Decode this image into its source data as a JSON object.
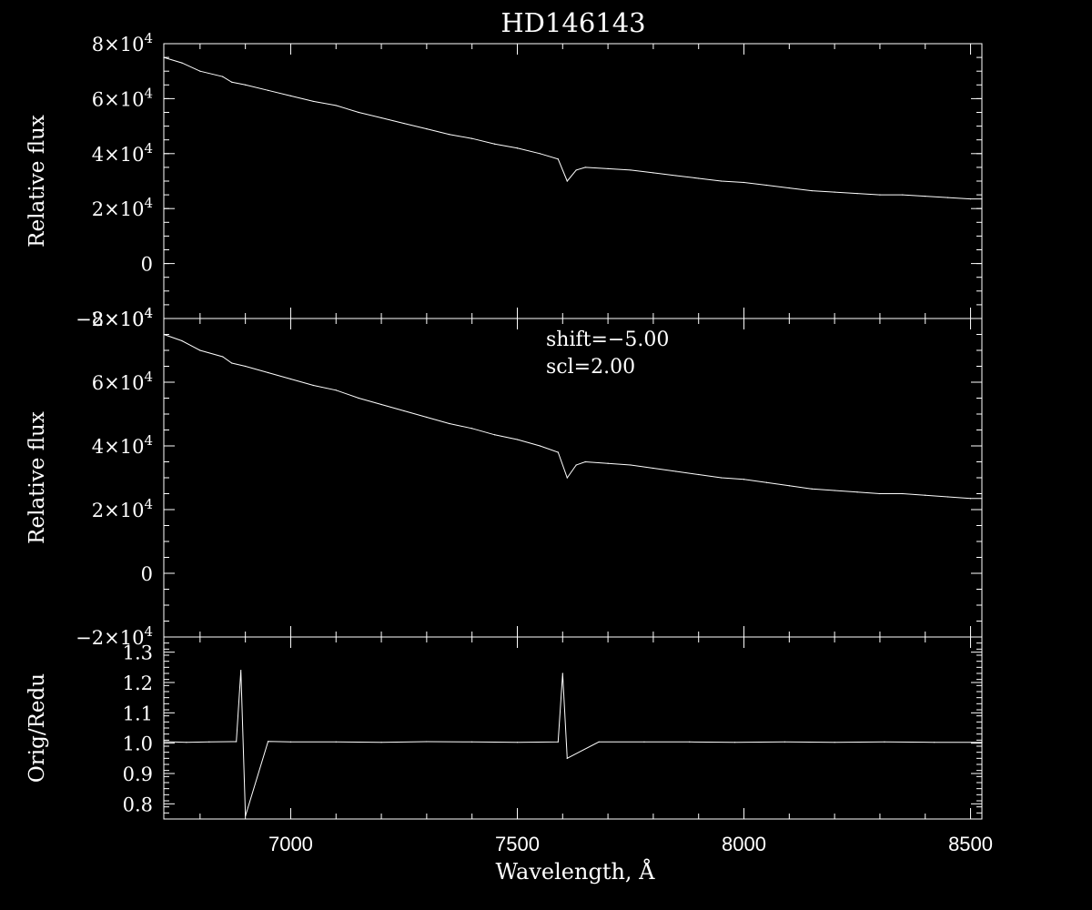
{
  "chart_data": {
    "type": "line",
    "title": "HD146143",
    "x_axis": {
      "label": "Wavelength, Å",
      "lim": [
        6720,
        8525
      ],
      "ticks": [
        7000,
        7500,
        8000,
        8500
      ]
    },
    "panels": [
      {
        "ylabel": "Relative flux",
        "ylim": [
          -20000,
          80000
        ],
        "yticks": [
          {
            "value": 80000,
            "mant": "8",
            "exp": "4"
          },
          {
            "value": 60000,
            "mant": "6",
            "exp": "4"
          },
          {
            "value": 40000,
            "mant": "4",
            "exp": "4"
          },
          {
            "value": 20000,
            "mant": "2",
            "exp": "4"
          },
          {
            "value": 0,
            "mant": "0",
            "exp": ""
          },
          {
            "value": -20000,
            "mant": "−2",
            "exp": "4"
          }
        ],
        "annotations": [],
        "series": [
          {
            "x": [
              6720,
              6760,
              6800,
              6850,
              6870,
              6900,
              6950,
              7000,
              7050,
              7100,
              7150,
              7200,
              7250,
              7300,
              7350,
              7400,
              7450,
              7500,
              7550,
              7590,
              7610,
              7630,
              7650,
              7700,
              7750,
              7800,
              7850,
              7900,
              7950,
              8000,
              8050,
              8100,
              8150,
              8200,
              8250,
              8300,
              8350,
              8400,
              8450,
              8500,
              8525
            ],
            "y": [
              75000,
              73000,
              70000,
              68000,
              66000,
              65000,
              63000,
              61000,
              59000,
              57500,
              55000,
              53000,
              51000,
              49000,
              47000,
              45500,
              43500,
              42000,
              40000,
              38000,
              30000,
              34000,
              35000,
              34500,
              34000,
              33000,
              32000,
              31000,
              30000,
              29500,
              28500,
              27500,
              26500,
              26000,
              25500,
              25000,
              25000,
              24500,
              24000,
              23500,
              23500
            ]
          }
        ]
      },
      {
        "ylabel": "Relative flux",
        "ylim": [
          -20000,
          80000
        ],
        "yticks": [
          {
            "value": 80000,
            "mant": "8",
            "exp": "4"
          },
          {
            "value": 60000,
            "mant": "6",
            "exp": "4"
          },
          {
            "value": 40000,
            "mant": "4",
            "exp": "4"
          },
          {
            "value": 20000,
            "mant": "2",
            "exp": "4"
          },
          {
            "value": 0,
            "mant": "0",
            "exp": ""
          },
          {
            "value": -20000,
            "mant": "−2",
            "exp": "4"
          }
        ],
        "annotations": [
          "shift=−5.00",
          "scl=2.00"
        ],
        "series": [
          {
            "x": [
              6720,
              6760,
              6800,
              6850,
              6870,
              6900,
              6950,
              7000,
              7050,
              7100,
              7150,
              7200,
              7250,
              7300,
              7350,
              7400,
              7450,
              7500,
              7550,
              7590,
              7610,
              7630,
              7650,
              7700,
              7750,
              7800,
              7850,
              7900,
              7950,
              8000,
              8050,
              8100,
              8150,
              8200,
              8250,
              8300,
              8350,
              8400,
              8450,
              8500,
              8525
            ],
            "y": [
              75000,
              73000,
              70000,
              68000,
              66000,
              65000,
              63000,
              61000,
              59000,
              57500,
              55000,
              53000,
              51000,
              49000,
              47000,
              45500,
              43500,
              42000,
              40000,
              38000,
              30000,
              34000,
              35000,
              34500,
              34000,
              33000,
              32000,
              31000,
              30000,
              29500,
              28500,
              27500,
              26500,
              26000,
              25500,
              25000,
              25000,
              24500,
              24000,
              23500,
              23500
            ]
          }
        ]
      },
      {
        "ylabel": "Orig/Redu",
        "ylim": [
          0.75,
          1.35
        ],
        "yticks": [
          {
            "value": 1.3,
            "mant": "1.3",
            "exp": ""
          },
          {
            "value": 1.2,
            "mant": "1.2",
            "exp": ""
          },
          {
            "value": 1.1,
            "mant": "1.1",
            "exp": ""
          },
          {
            "value": 1.0,
            "mant": "1.0",
            "exp": ""
          },
          {
            "value": 0.9,
            "mant": "0.9",
            "exp": ""
          },
          {
            "value": 0.8,
            "mant": "0.8",
            "exp": ""
          }
        ],
        "annotations": [],
        "series": [
          {
            "x": [
              6720,
              6770,
              6820,
              6880,
              6890,
              6900,
              6950,
              7000,
              7100,
              7200,
              7300,
              7400,
              7500,
              7590,
              7600,
              7610,
              7680,
              7780,
              7880,
              7980,
              8090,
              8200,
              8310,
              8420,
              8525
            ],
            "y": [
              1.005,
              1.003,
              1.004,
              1.005,
              1.24,
              0.76,
              1.006,
              1.004,
              1.004,
              1.003,
              1.005,
              1.004,
              1.003,
              1.004,
              1.23,
              0.95,
              1.004,
              1.004,
              1.004,
              1.003,
              1.004,
              1.003,
              1.004,
              1.003,
              1.003
            ]
          }
        ]
      }
    ]
  }
}
